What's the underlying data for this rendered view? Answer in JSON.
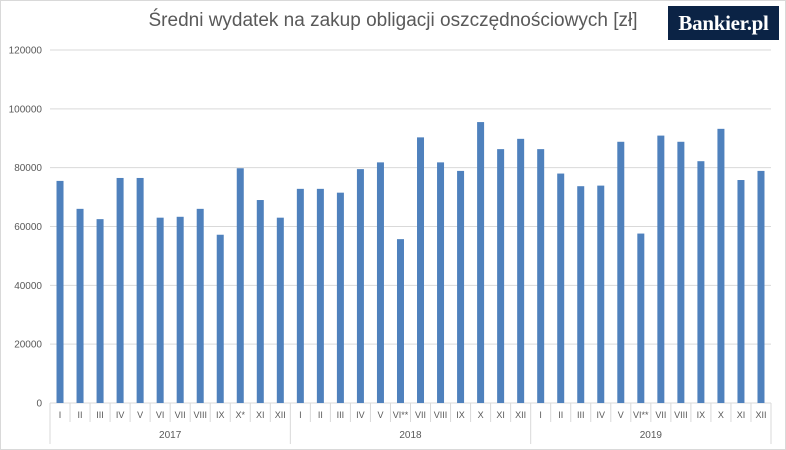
{
  "header": {
    "title": "Średni wydatek na zakup obligacji oszczędnościowych [zł]",
    "logo_text": "Bankier.pl"
  },
  "colors": {
    "bar": "#4f81bd",
    "grid": "#d9d9d9",
    "text": "#595959",
    "logo_bg": "#0b2345"
  },
  "chart_data": {
    "type": "bar",
    "title": "Średni wydatek na zakup obligacji oszczędnościowych [zł]",
    "xlabel": "",
    "ylabel": "",
    "ylim": [
      0,
      120000
    ],
    "yticks": [
      0,
      20000,
      40000,
      60000,
      80000,
      100000,
      120000
    ],
    "grid": true,
    "legend": "none",
    "groups": [
      {
        "label": "2017",
        "count": 12
      },
      {
        "label": "2018",
        "count": 12
      },
      {
        "label": "2019",
        "count": 12
      }
    ],
    "categories": [
      "I",
      "II",
      "III",
      "IV",
      "V",
      "VI",
      "VII",
      "VIII",
      "IX",
      "X*",
      "XI",
      "XII",
      "I",
      "II",
      "III",
      "IV",
      "V",
      "VI**",
      "VII",
      "VIII",
      "IX",
      "X",
      "XI",
      "XII",
      "I",
      "II",
      "III",
      "IV",
      "V",
      "VI**",
      "VII",
      "VIII",
      "IX",
      "X",
      "XI",
      "XII"
    ],
    "values": [
      75500,
      66000,
      62500,
      76500,
      76500,
      63000,
      63300,
      66000,
      57200,
      79800,
      69000,
      63000,
      72800,
      72800,
      71500,
      79500,
      81800,
      55700,
      90300,
      81800,
      78900,
      95500,
      86300,
      89800,
      86300,
      78000,
      73700,
      73900,
      88800,
      57600,
      90900,
      88800,
      82200,
      93200,
      75800,
      78900
    ]
  }
}
